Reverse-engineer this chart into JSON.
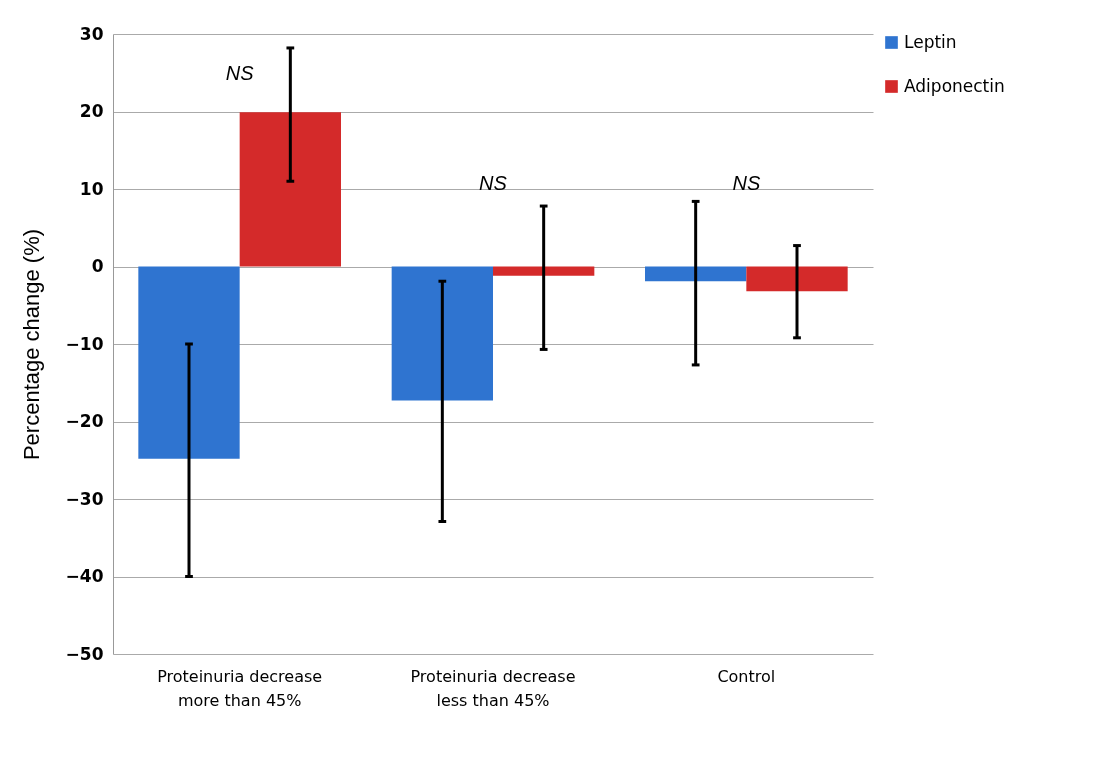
{
  "chart_data": {
    "type": "bar",
    "ylabel": "Percentage change (%)",
    "categories": [
      "Proteinuria decrease\nmore than 45%",
      "Proteinuria decrease\nless than 45%",
      "Control"
    ],
    "series": [
      {
        "name": "Leptin",
        "color": "#2f74d0",
        "values": [
          -24.8,
          -17.3,
          -1.9
        ],
        "errors": [
          [
            -40,
            -10
          ],
          [
            -32.9,
            -1.9
          ],
          [
            -12.7,
            8.4
          ]
        ]
      },
      {
        "name": "Adiponectin",
        "color": "#d42a2a",
        "values": [
          19.9,
          -1.2,
          -3.2
        ],
        "errors": [
          [
            11,
            28.2
          ],
          [
            -10.7,
            7.8
          ],
          [
            -9.2,
            2.7
          ]
        ]
      }
    ],
    "ylim": [
      -50,
      30
    ],
    "yticks": [
      -50,
      -40,
      -30,
      -20,
      -10,
      0,
      10,
      20,
      30
    ],
    "grid": "y",
    "legend": "top right",
    "annotations": [
      "NS",
      "NS",
      "NS"
    ]
  }
}
